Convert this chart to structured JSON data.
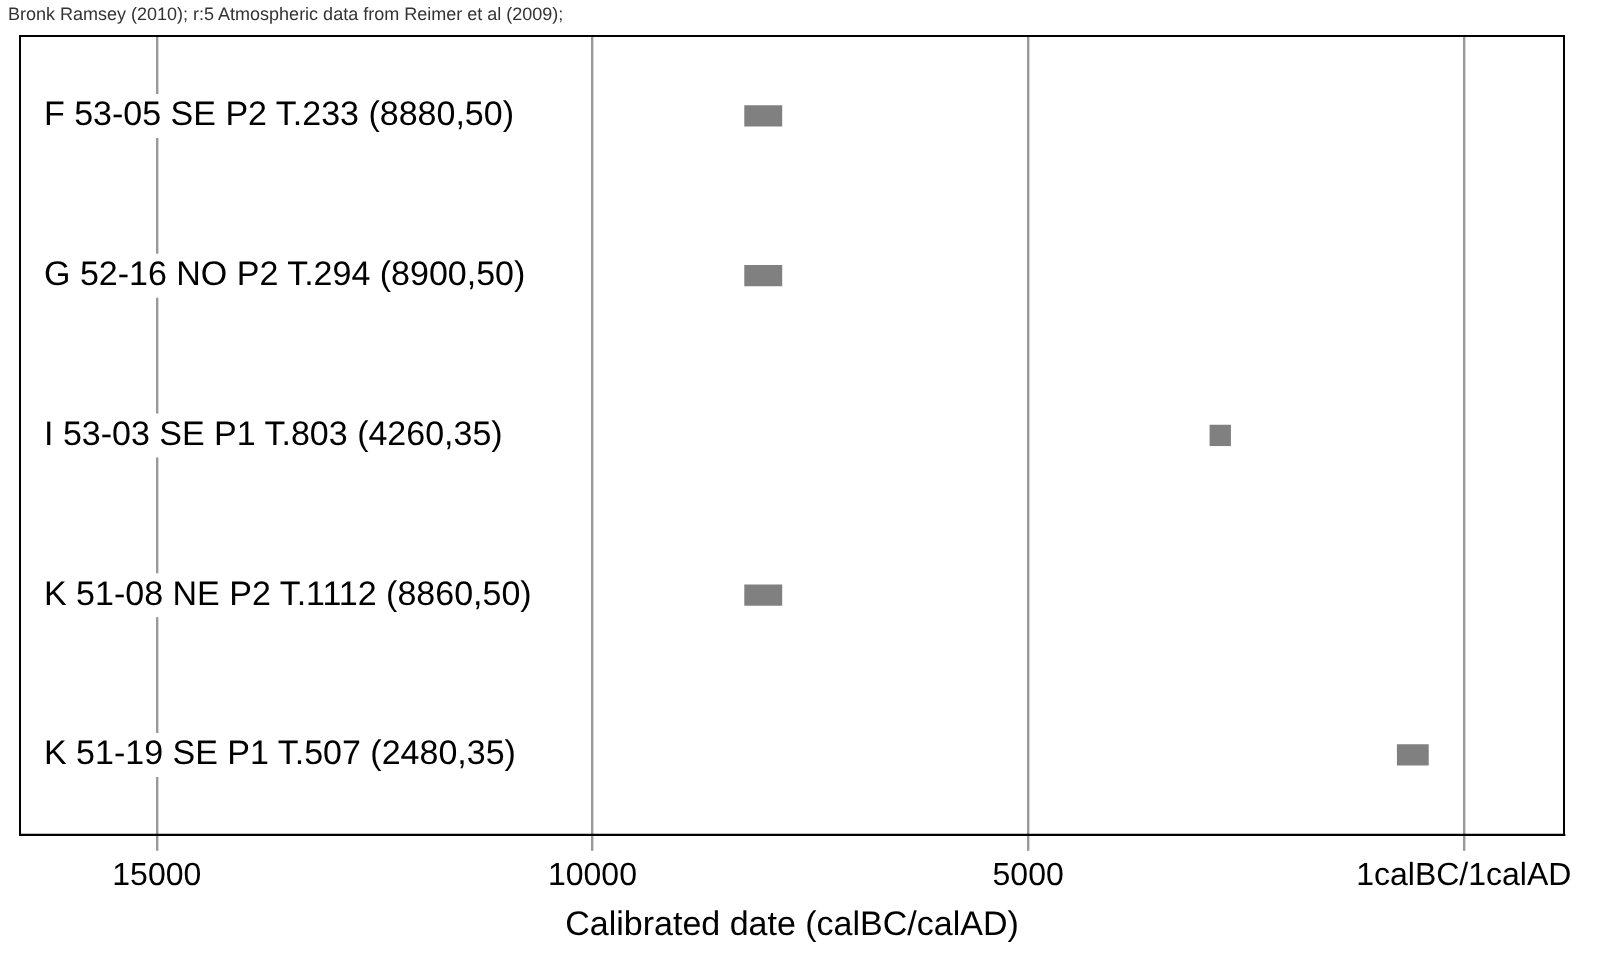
{
  "chart_data": {
    "type": "bar",
    "orientation": "horizontal",
    "title": "Bronk Ramsey (2010); r:5 Atmospheric data from Reimer et al (2009);",
    "xlabel": "Calibrated date (calBC/calAD)",
    "categories": [
      "F 53-05 SE P2 T.233 (8880,50)",
      "G 52-16 NO P2 T.294 (8900,50)",
      "I 53-03 SE P1 T.803 (4260,35)",
      "K 51-08 NE P2 T.1112 (8860,50)",
      "K 51-19 SE P1 T.507 (2480,35)"
    ],
    "base": [
      8250,
      8250,
      2910,
      8250,
      760
    ],
    "values": [
      -420,
      -420,
      -230,
      -420,
      -350
    ],
    "color": "#808080",
    "xlim": [
      16570,
      -1150
    ],
    "xticks": [
      15000,
      10000,
      5000,
      {
        "value": 0,
        "label": "1calBC/1calAD"
      }
    ],
    "grid": "x"
  }
}
